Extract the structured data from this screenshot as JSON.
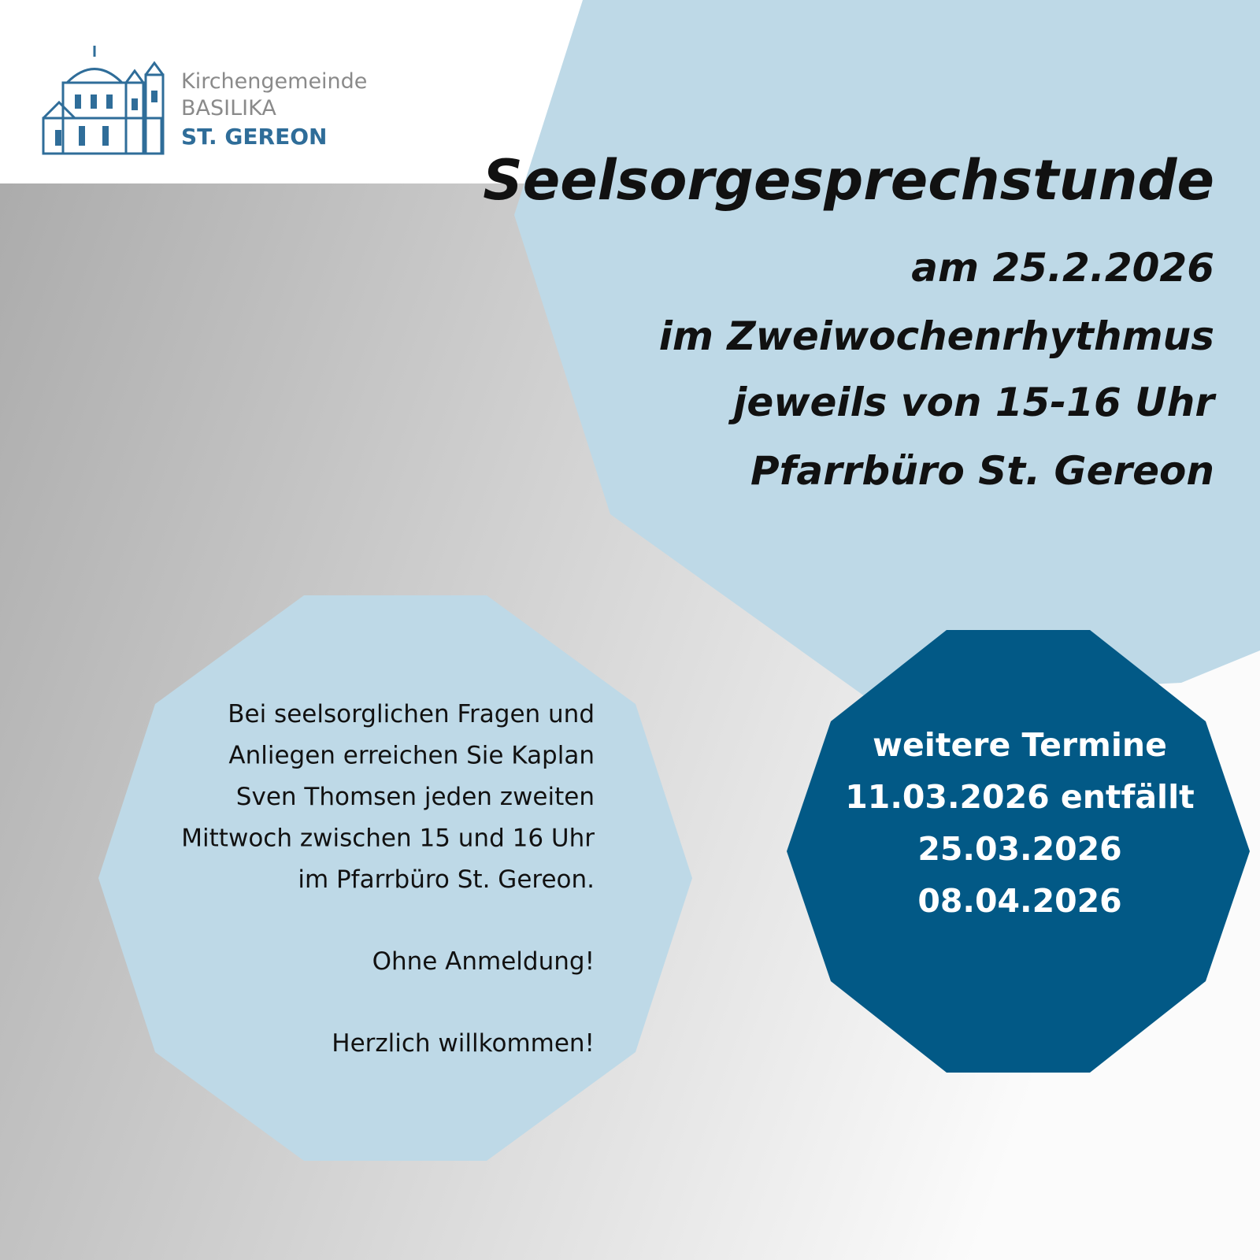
{
  "logo": {
    "line1": "Kirchengemeinde",
    "line2": "BASILIKA",
    "line3": "ST. GEREON"
  },
  "heading": "Seelsorgesprechstunde",
  "details": [
    "am 25.2.2026",
    "im Zweiwochenrhythmus",
    "jeweils von 15-16 Uhr",
    "Pfarrbüro St. Gereon"
  ],
  "info": {
    "lines": [
      "Bei seelsorglichen Fragen und",
      "Anliegen erreichen Sie Kaplan",
      "Sven Thomsen jeden zweiten",
      "Mittwoch zwischen 15 und 16 Uhr",
      "im Pfarrbüro St. Gereon."
    ],
    "note": "Ohne Anmeldung!",
    "welcome": "Herzlich willkommen!"
  },
  "dates": {
    "title": "weitere Termine",
    "items": [
      "11.03.2026 entfällt",
      "25.03.2026",
      "08.04.2026"
    ]
  }
}
